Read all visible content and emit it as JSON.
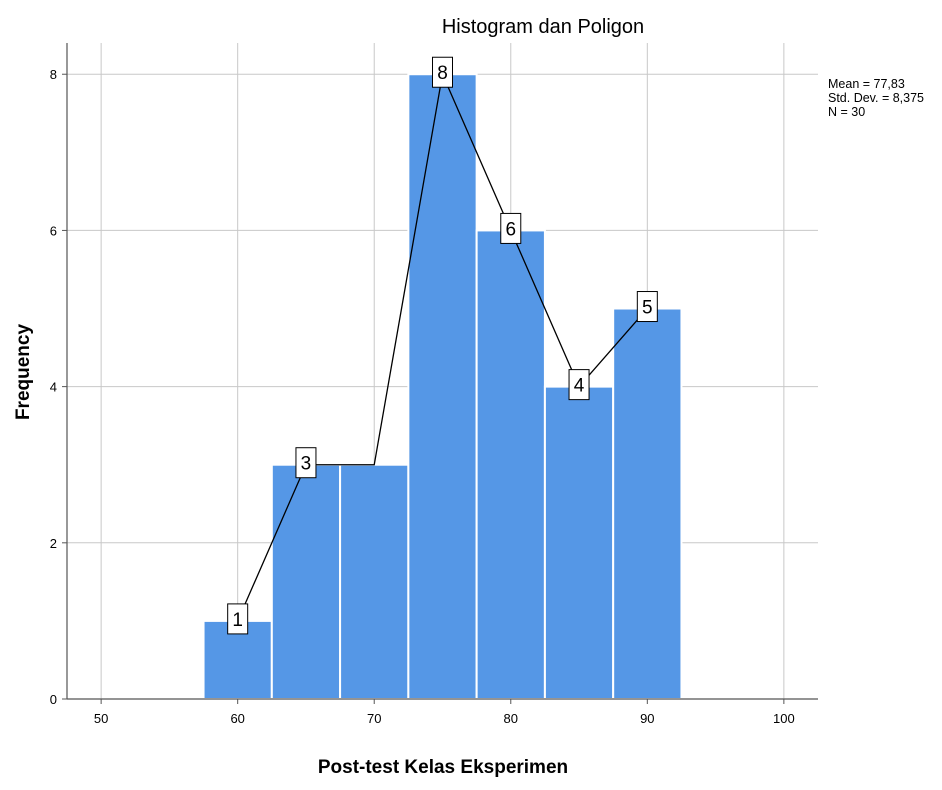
{
  "chart_data": {
    "type": "bar",
    "subtype": "histogram-with-frequency-polygon",
    "title": "Histogram dan Poligon",
    "xlabel": "Post-test Kelas Eksperimen",
    "ylabel": "Frequency",
    "xlim": [
      47.5,
      102.5
    ],
    "ylim": [
      0,
      8.4
    ],
    "x_ticks": [
      50,
      60,
      70,
      80,
      90,
      100
    ],
    "y_ticks": [
      0,
      2,
      4,
      6,
      8
    ],
    "bin_width": 5,
    "bins": [
      {
        "center": 60,
        "value": 1
      },
      {
        "center": 65,
        "value": 3
      },
      {
        "center": 70,
        "value": 3
      },
      {
        "center": 75,
        "value": 8
      },
      {
        "center": 80,
        "value": 6
      },
      {
        "center": 85,
        "value": 4
      },
      {
        "center": 90,
        "value": 5
      }
    ],
    "polygon_points": [
      {
        "x": 60,
        "y": 1,
        "label": "1"
      },
      {
        "x": 65,
        "y": 3,
        "label": "3"
      },
      {
        "x": 70,
        "y": 3,
        "label": ""
      },
      {
        "x": 75,
        "y": 8,
        "label": "8"
      },
      {
        "x": 80,
        "y": 6,
        "label": "6"
      },
      {
        "x": 85,
        "y": 4,
        "label": "4"
      },
      {
        "x": 90,
        "y": 5,
        "label": "5"
      }
    ],
    "stats": [
      "Mean = 77,83",
      "Std. Dev. = 8,375",
      "N = 30"
    ],
    "grid": true,
    "bar_color": "#5597e6",
    "bar_edge_color": "#ffffff",
    "grid_color": "#c8c8c8",
    "line_color": "#000000"
  }
}
